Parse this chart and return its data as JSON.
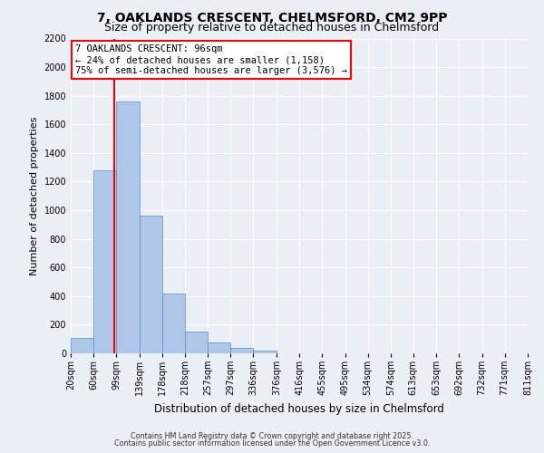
{
  "title": "7, OAKLANDS CRESCENT, CHELMSFORD, CM2 9PP",
  "subtitle": "Size of property relative to detached houses in Chelmsford",
  "xlabel": "Distribution of detached houses by size in Chelmsford",
  "ylabel": "Number of detached properties",
  "bin_labels": [
    "20sqm",
    "60sqm",
    "99sqm",
    "139sqm",
    "178sqm",
    "218sqm",
    "257sqm",
    "297sqm",
    "336sqm",
    "376sqm",
    "416sqm",
    "455sqm",
    "495sqm",
    "534sqm",
    "574sqm",
    "613sqm",
    "653sqm",
    "692sqm",
    "732sqm",
    "771sqm",
    "811sqm"
  ],
  "bin_edges": [
    20,
    60,
    99,
    139,
    178,
    218,
    257,
    297,
    336,
    376,
    416,
    455,
    495,
    534,
    574,
    613,
    653,
    692,
    732,
    771,
    811
  ],
  "bar_heights": [
    110,
    1280,
    1760,
    960,
    420,
    150,
    75,
    40,
    20,
    0,
    0,
    0,
    0,
    0,
    0,
    0,
    0,
    0,
    0,
    0
  ],
  "bar_color": "#aec6e8",
  "bar_edgecolor": "#5a8fc0",
  "property_size": 96,
  "vline_color": "#ff0000",
  "annotation_line1": "7 OAKLANDS CRESCENT: 96sqm",
  "annotation_line2": "← 24% of detached houses are smaller (1,158)",
  "annotation_line3": "75% of semi-detached houses are larger (3,576) →",
  "annotation_box_color": "#ffffff",
  "annotation_box_edgecolor": "#ff0000",
  "ylim": [
    0,
    2200
  ],
  "yticks": [
    0,
    200,
    400,
    600,
    800,
    1000,
    1200,
    1400,
    1600,
    1800,
    2000,
    2200
  ],
  "bg_color": "#eaeef5",
  "grid_color": "#ffffff",
  "footer_line1": "Contains HM Land Registry data © Crown copyright and database right 2025.",
  "footer_line2": "Contains public sector information licensed under the Open Government Licence v3.0.",
  "title_fontsize": 10,
  "subtitle_fontsize": 9,
  "tick_fontsize": 7,
  "ylabel_fontsize": 8,
  "xlabel_fontsize": 8.5,
  "annotation_fontsize": 7.5
}
